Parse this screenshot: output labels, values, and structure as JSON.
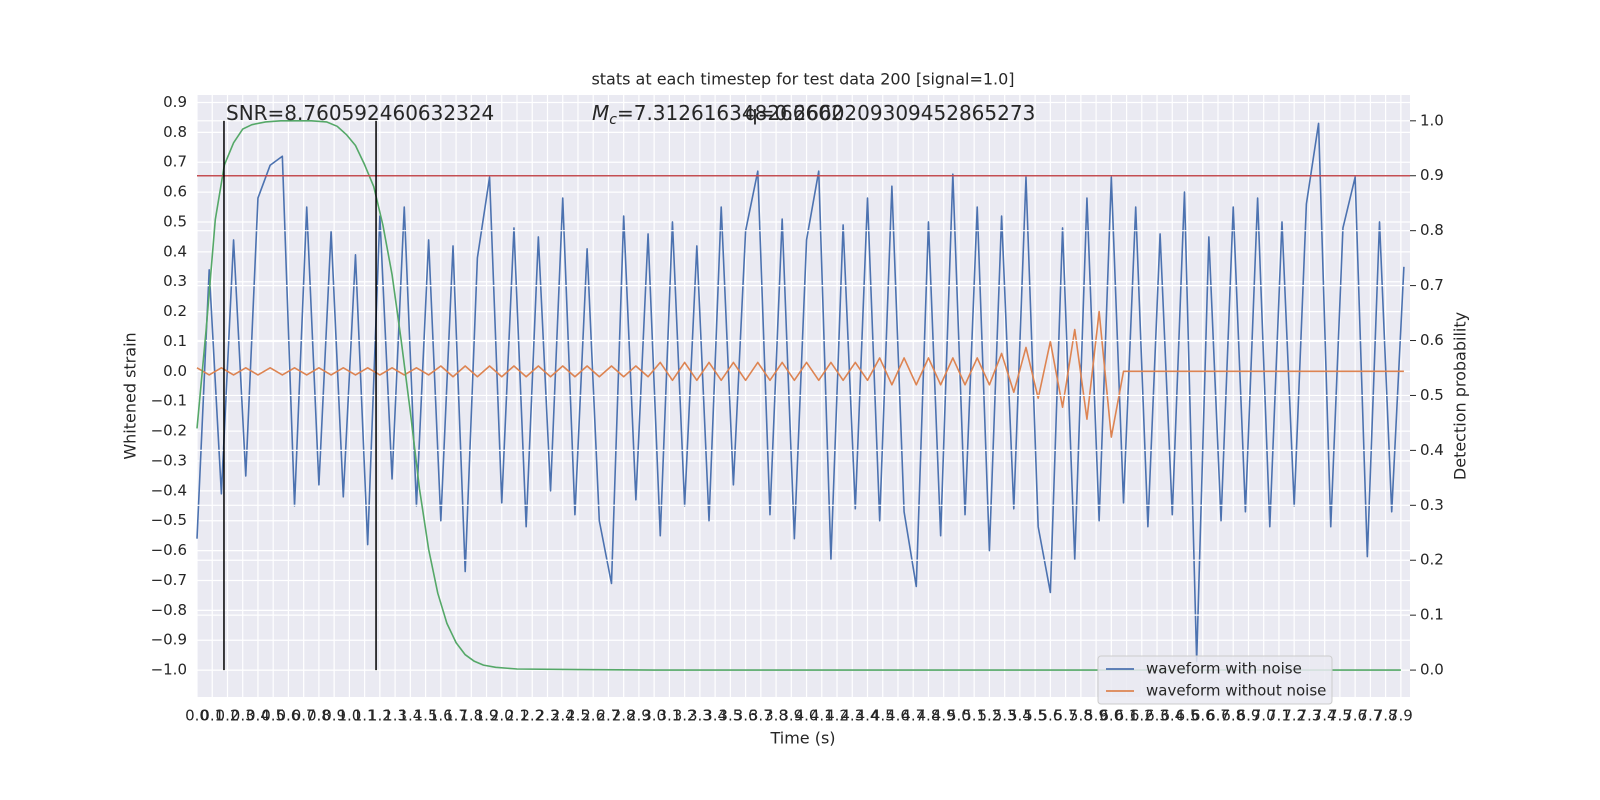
{
  "chart_data": {
    "type": "line",
    "title": "stats at each timestep for test data 200 [signal=1.0]",
    "x_label": "Time (s)",
    "y_label": "Whitened strain",
    "y2_label": "Detection probability",
    "annotations": [
      {
        "text": "SNR=8.760592460632324"
      },
      {
        "symbol": "M",
        "subscript": "c",
        "text": "=7.312616348266602"
      },
      {
        "text": "q=0.2660209309452865273"
      }
    ],
    "xlim": [
      0,
      7.96
    ],
    "ylim": [
      -1.09,
      0.925
    ],
    "y2lim": [
      -0.049,
      1.047
    ],
    "grid": true,
    "legend": "lower right",
    "xticks": [
      {
        "value": 0,
        "label": "0.0"
      },
      0.1,
      0.2,
      0.3,
      0.4,
      0.5,
      0.6,
      0.7,
      0.8,
      0.9,
      {
        "value": 1,
        "label": "1.0"
      },
      1.1,
      1.2,
      1.3,
      1.4,
      1.5,
      1.6,
      1.7,
      1.8,
      1.9,
      {
        "value": 2,
        "label": "2.0"
      },
      2.1,
      2.2,
      2.3,
      2.4,
      2.5,
      2.6,
      2.7,
      2.8,
      2.9,
      {
        "value": 3,
        "label": "3.0"
      },
      3.1,
      3.2,
      3.3,
      3.4,
      3.5,
      3.6,
      3.7,
      3.8,
      3.9,
      {
        "value": 4,
        "label": "4.0"
      },
      4.1,
      4.2,
      4.3,
      4.4,
      4.5,
      4.6,
      4.7,
      4.8,
      4.9,
      {
        "value": 5,
        "label": "5.0"
      },
      5.1,
      5.2,
      5.3,
      5.4,
      5.5,
      5.6,
      5.7,
      5.8,
      5.9,
      {
        "value": 6,
        "label": "6.0"
      },
      6.1,
      6.2,
      6.3,
      6.4,
      6.5,
      6.6,
      6.7,
      6.8,
      6.9,
      {
        "value": 7,
        "label": "7.0"
      },
      7.1,
      7.2,
      7.3,
      7.4,
      7.5,
      7.6,
      7.7,
      7.8,
      7.9
    ],
    "yticks": [
      0.9,
      0.8,
      0.7,
      0.6,
      0.5,
      0.4,
      0.3,
      0.2,
      0.1,
      {
        "value": 0,
        "label": "0.0"
      },
      {
        "value": -0.1,
        "label": "−0.1"
      },
      {
        "value": -0.2,
        "label": "−0.2"
      },
      {
        "value": -0.3,
        "label": "−0.3"
      },
      {
        "value": -0.4,
        "label": "−0.4"
      },
      {
        "value": -0.5,
        "label": "−0.5"
      },
      {
        "value": -0.6,
        "label": "−0.6"
      },
      {
        "value": -0.7,
        "label": "−0.7"
      },
      {
        "value": -0.8,
        "label": "−0.8"
      },
      {
        "value": -0.9,
        "label": "−0.9"
      },
      {
        "value": -1,
        "label": "−1.0"
      }
    ],
    "y2ticks": [
      {
        "value": 0,
        "label": "0.0"
      },
      0.1,
      0.2,
      0.3,
      0.4,
      0.5,
      0.6,
      0.7,
      0.8,
      0.9,
      {
        "value": 1,
        "label": "1.0"
      }
    ],
    "x": [
      0,
      0.08,
      0.16,
      0.24,
      0.32,
      0.4,
      0.48,
      0.56,
      0.64,
      0.72,
      0.8,
      0.88,
      0.96,
      1.04,
      1.12,
      1.2,
      1.28,
      1.36,
      1.44,
      1.52,
      1.6,
      1.68,
      1.76,
      1.84,
      1.92,
      2,
      2.08,
      2.16,
      2.24,
      2.32,
      2.4,
      2.48,
      2.56,
      2.64,
      2.72,
      2.8,
      2.88,
      2.96,
      3.04,
      3.12,
      3.2,
      3.28,
      3.36,
      3.44,
      3.52,
      3.6,
      3.68,
      3.76,
      3.84,
      3.92,
      4,
      4.08,
      4.16,
      4.24,
      4.32,
      4.4,
      4.48,
      4.56,
      4.64,
      4.72,
      4.8,
      4.88,
      4.96,
      5.04,
      5.12,
      5.2,
      5.28,
      5.36,
      5.44,
      5.52,
      5.6,
      5.68,
      5.76,
      5.84,
      5.92,
      6,
      6.08,
      6.16,
      6.24,
      6.32,
      6.4,
      6.48,
      6.56,
      6.64,
      6.72,
      6.8,
      6.88,
      6.96,
      7.04,
      7.12,
      7.2,
      7.28,
      7.36,
      7.44,
      7.52,
      7.6,
      7.68,
      7.76,
      7.84,
      7.92
    ],
    "series": [
      {
        "name": "waveform with noise",
        "color": "#4c72b0",
        "values": [
          -0.56,
          0.34,
          -0.41,
          0.44,
          -0.35,
          0.58,
          0.69,
          0.72,
          -0.45,
          0.55,
          -0.38,
          0.47,
          -0.42,
          0.39,
          -0.58,
          0.52,
          -0.36,
          0.55,
          -0.45,
          0.44,
          -0.5,
          0.42,
          -0.67,
          0.38,
          0.65,
          -0.44,
          0.48,
          -0.52,
          0.45,
          -0.4,
          0.58,
          -0.48,
          0.41,
          -0.5,
          -0.71,
          0.52,
          -0.43,
          0.46,
          -0.55,
          0.5,
          -0.45,
          0.42,
          -0.5,
          0.55,
          -0.38,
          0.47,
          0.67,
          -0.48,
          0.51,
          -0.56,
          0.44,
          0.67,
          -0.63,
          0.49,
          -0.46,
          0.58,
          -0.5,
          0.62,
          -0.47,
          -0.72,
          0.5,
          -0.55,
          0.66,
          -0.48,
          0.55,
          -0.6,
          0.52,
          -0.46,
          0.65,
          -0.52,
          -0.74,
          0.48,
          -0.63,
          0.58,
          -0.5,
          0.65,
          -0.44,
          0.55,
          -0.52,
          0.46,
          -0.48,
          0.6,
          -0.97,
          0.45,
          -0.5,
          0.55,
          -0.47,
          0.58,
          -0.52,
          0.5,
          -0.45,
          0.56,
          0.83,
          -0.52,
          0.48,
          0.65,
          -0.62,
          0.5,
          -0.47,
          0.35
        ]
      },
      {
        "name": "waveform without noise",
        "color": "#dd8452",
        "values": [
          0.012,
          -0.012,
          0.012,
          -0.012,
          0.012,
          -0.012,
          0.012,
          -0.012,
          0.012,
          -0.012,
          0.012,
          -0.012,
          0.012,
          -0.012,
          0.012,
          -0.012,
          0.012,
          -0.012,
          0.012,
          -0.012,
          0.018,
          -0.018,
          0.018,
          -0.018,
          0.018,
          -0.018,
          0.018,
          -0.018,
          0.018,
          -0.018,
          0.018,
          -0.018,
          0.018,
          -0.018,
          0.018,
          -0.018,
          0.018,
          -0.018,
          0.03,
          -0.03,
          0.03,
          -0.03,
          0.03,
          -0.03,
          0.03,
          -0.03,
          0.03,
          -0.03,
          0.03,
          -0.03,
          0.03,
          -0.03,
          0.03,
          -0.03,
          0.03,
          -0.03,
          0.045,
          -0.045,
          0.045,
          -0.045,
          0.045,
          -0.045,
          0.045,
          -0.045,
          0.045,
          -0.045,
          0.06,
          -0.07,
          0.08,
          -0.09,
          0.1,
          -0.12,
          0.14,
          -0.16,
          0.2,
          -0.22,
          0,
          0,
          0,
          0,
          0,
          0,
          0,
          0,
          0,
          0,
          0,
          0,
          0,
          0,
          0,
          0,
          0,
          0,
          0,
          0,
          0,
          0,
          0,
          0
        ]
      }
    ],
    "probability": {
      "axis": "y2",
      "color": "#55a868",
      "x": [
        0,
        0.06,
        0.12,
        0.18,
        0.24,
        0.3,
        0.36,
        0.45,
        0.55,
        0.65,
        0.75,
        0.85,
        0.92,
        0.98,
        1.04,
        1.1,
        1.16,
        1.22,
        1.28,
        1.34,
        1.4,
        1.46,
        1.52,
        1.58,
        1.64,
        1.7,
        1.76,
        1.82,
        1.88,
        1.96,
        2.1,
        2.5,
        3,
        7.9
      ],
      "values": [
        0.44,
        0.62,
        0.82,
        0.92,
        0.96,
        0.985,
        0.993,
        0.998,
        1,
        1,
        1,
        0.998,
        0.99,
        0.975,
        0.955,
        0.92,
        0.88,
        0.81,
        0.72,
        0.6,
        0.47,
        0.33,
        0.22,
        0.14,
        0.085,
        0.05,
        0.028,
        0.016,
        0.009,
        0.005,
        0.002,
        0.001,
        0,
        0
      ]
    },
    "threshold": {
      "axis": "y2",
      "value": 0.9,
      "color": "#c44e52"
    },
    "vlines": {
      "x": [
        0.177,
        1.175
      ],
      "ymin": 0,
      "ymax": 1,
      "axis": "y2",
      "color": "#000000"
    }
  }
}
